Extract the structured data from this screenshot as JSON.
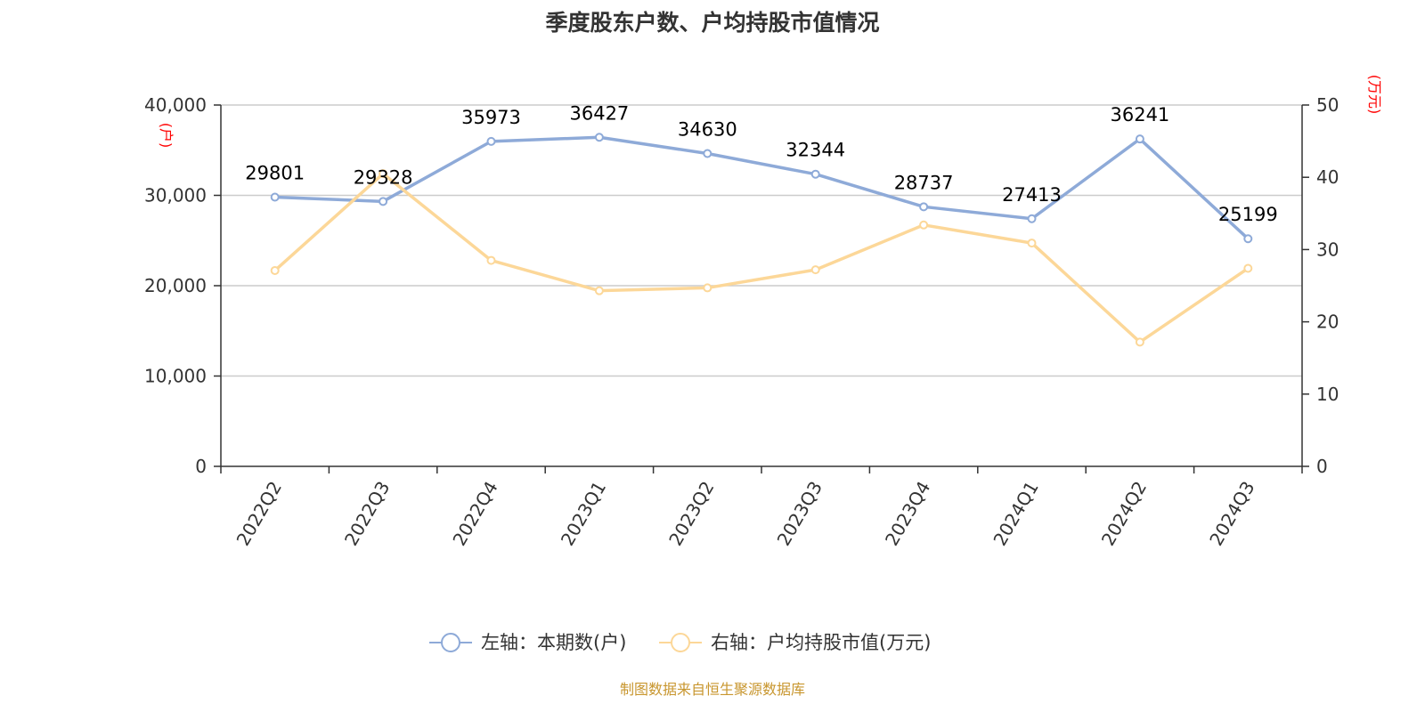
{
  "chart_data": {
    "type": "line",
    "title": "季度股东户数、户均持股市值情况",
    "categories": [
      "2022Q2",
      "2022Q3",
      "2022Q4",
      "2023Q1",
      "2023Q2",
      "2023Q3",
      "2023Q4",
      "2024Q1",
      "2024Q2",
      "2024Q3"
    ],
    "series": [
      {
        "name": "左轴：本期数(户)",
        "axis": "left",
        "color": "#8eaad8",
        "values": [
          29801,
          29328,
          35973,
          36427,
          34630,
          32344,
          28737,
          27413,
          36241,
          25199
        ],
        "labels": [
          "29801",
          "29328",
          "35973",
          "36427",
          "34630",
          "32344",
          "28737",
          "27413",
          "36241",
          "25199"
        ]
      },
      {
        "name": "右轴：户均持股市值(万元)",
        "axis": "right",
        "color": "#fcd798",
        "values": [
          27.1,
          40.5,
          28.5,
          24.3,
          24.7,
          27.2,
          33.4,
          30.9,
          17.2,
          27.4
        ]
      }
    ],
    "left_axis": {
      "unit": "(户)",
      "ylim": [
        0,
        40000
      ],
      "ticks": [
        "0",
        "10,000",
        "20,000",
        "30,000",
        "40,000"
      ],
      "tick_values": [
        0,
        10000,
        20000,
        30000,
        40000
      ]
    },
    "right_axis": {
      "unit": "(万元)",
      "ylim": [
        0,
        50
      ],
      "ticks": [
        "0",
        "10",
        "20",
        "30",
        "40",
        "50"
      ],
      "tick_values": [
        0,
        10,
        20,
        30,
        40,
        50
      ]
    },
    "grid": true,
    "legend_position": "bottom-center"
  },
  "source": "制图数据来自恒生聚源数据库"
}
